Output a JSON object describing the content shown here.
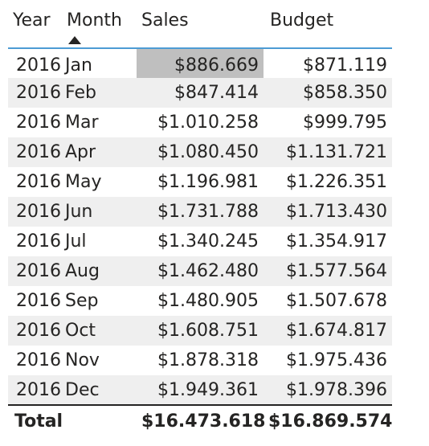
{
  "table": {
    "headers": {
      "year": "Year",
      "month": "Month",
      "sales": "Sales",
      "budget": "Budget"
    },
    "sort": {
      "column": "month",
      "direction": "ascending"
    },
    "rows": [
      {
        "year": "2016",
        "month": "Jan",
        "sales": "$886.669",
        "budget": "$871.119"
      },
      {
        "year": "2016",
        "month": "Feb",
        "sales": "$847.414",
        "budget": "$858.350"
      },
      {
        "year": "2016",
        "month": "Mar",
        "sales": "$1.010.258",
        "budget": "$999.795"
      },
      {
        "year": "2016",
        "month": "Apr",
        "sales": "$1.080.450",
        "budget": "$1.131.721"
      },
      {
        "year": "2016",
        "month": "May",
        "sales": "$1.196.981",
        "budget": "$1.226.351"
      },
      {
        "year": "2016",
        "month": "Jun",
        "sales": "$1.731.788",
        "budget": "$1.713.430"
      },
      {
        "year": "2016",
        "month": "Jul",
        "sales": "$1.340.245",
        "budget": "$1.354.917"
      },
      {
        "year": "2016",
        "month": "Aug",
        "sales": "$1.462.480",
        "budget": "$1.577.564"
      },
      {
        "year": "2016",
        "month": "Sep",
        "sales": "$1.480.905",
        "budget": "$1.507.678"
      },
      {
        "year": "2016",
        "month": "Oct",
        "sales": "$1.608.751",
        "budget": "$1.674.817"
      },
      {
        "year": "2016",
        "month": "Nov",
        "sales": "$1.878.318",
        "budget": "$1.975.436"
      },
      {
        "year": "2016",
        "month": "Dec",
        "sales": "$1.949.361",
        "budget": "$1.978.396"
      }
    ],
    "selected_cell": {
      "row": 0,
      "column": "sales"
    },
    "total": {
      "label": "Total",
      "sales": "$16.473.618",
      "budget": "$16.869.574"
    }
  },
  "colors": {
    "header_underline": "#4d9bd4",
    "alt_row": "#efefef",
    "selected_cell": "#bfbfbf",
    "text": "#252423"
  }
}
